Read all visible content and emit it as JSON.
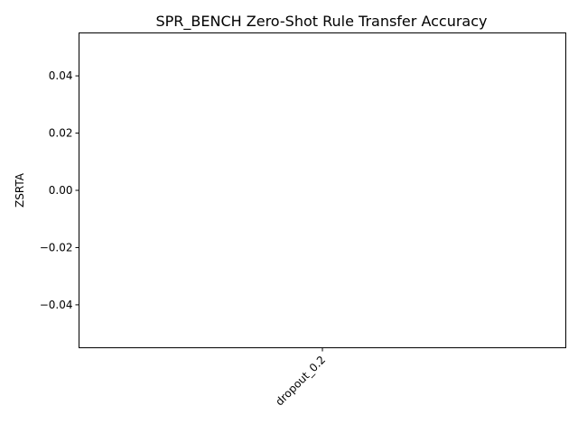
{
  "chart_data": {
    "type": "bar",
    "title": "SPR_BENCH Zero-Shot Rule Transfer Accuracy",
    "xlabel": "",
    "ylabel": "ZSRTA",
    "categories": [
      "dropout_0.2"
    ],
    "values": [
      0.0
    ],
    "ylim": [
      -0.055,
      0.055
    ],
    "yticks": [
      -0.04,
      -0.02,
      0.0,
      0.02,
      0.04
    ],
    "ytick_labels": [
      "−0.04",
      "−0.02",
      "0.00",
      "0.02",
      "0.04"
    ],
    "grid": false,
    "bar_color": "#1f77b4"
  }
}
